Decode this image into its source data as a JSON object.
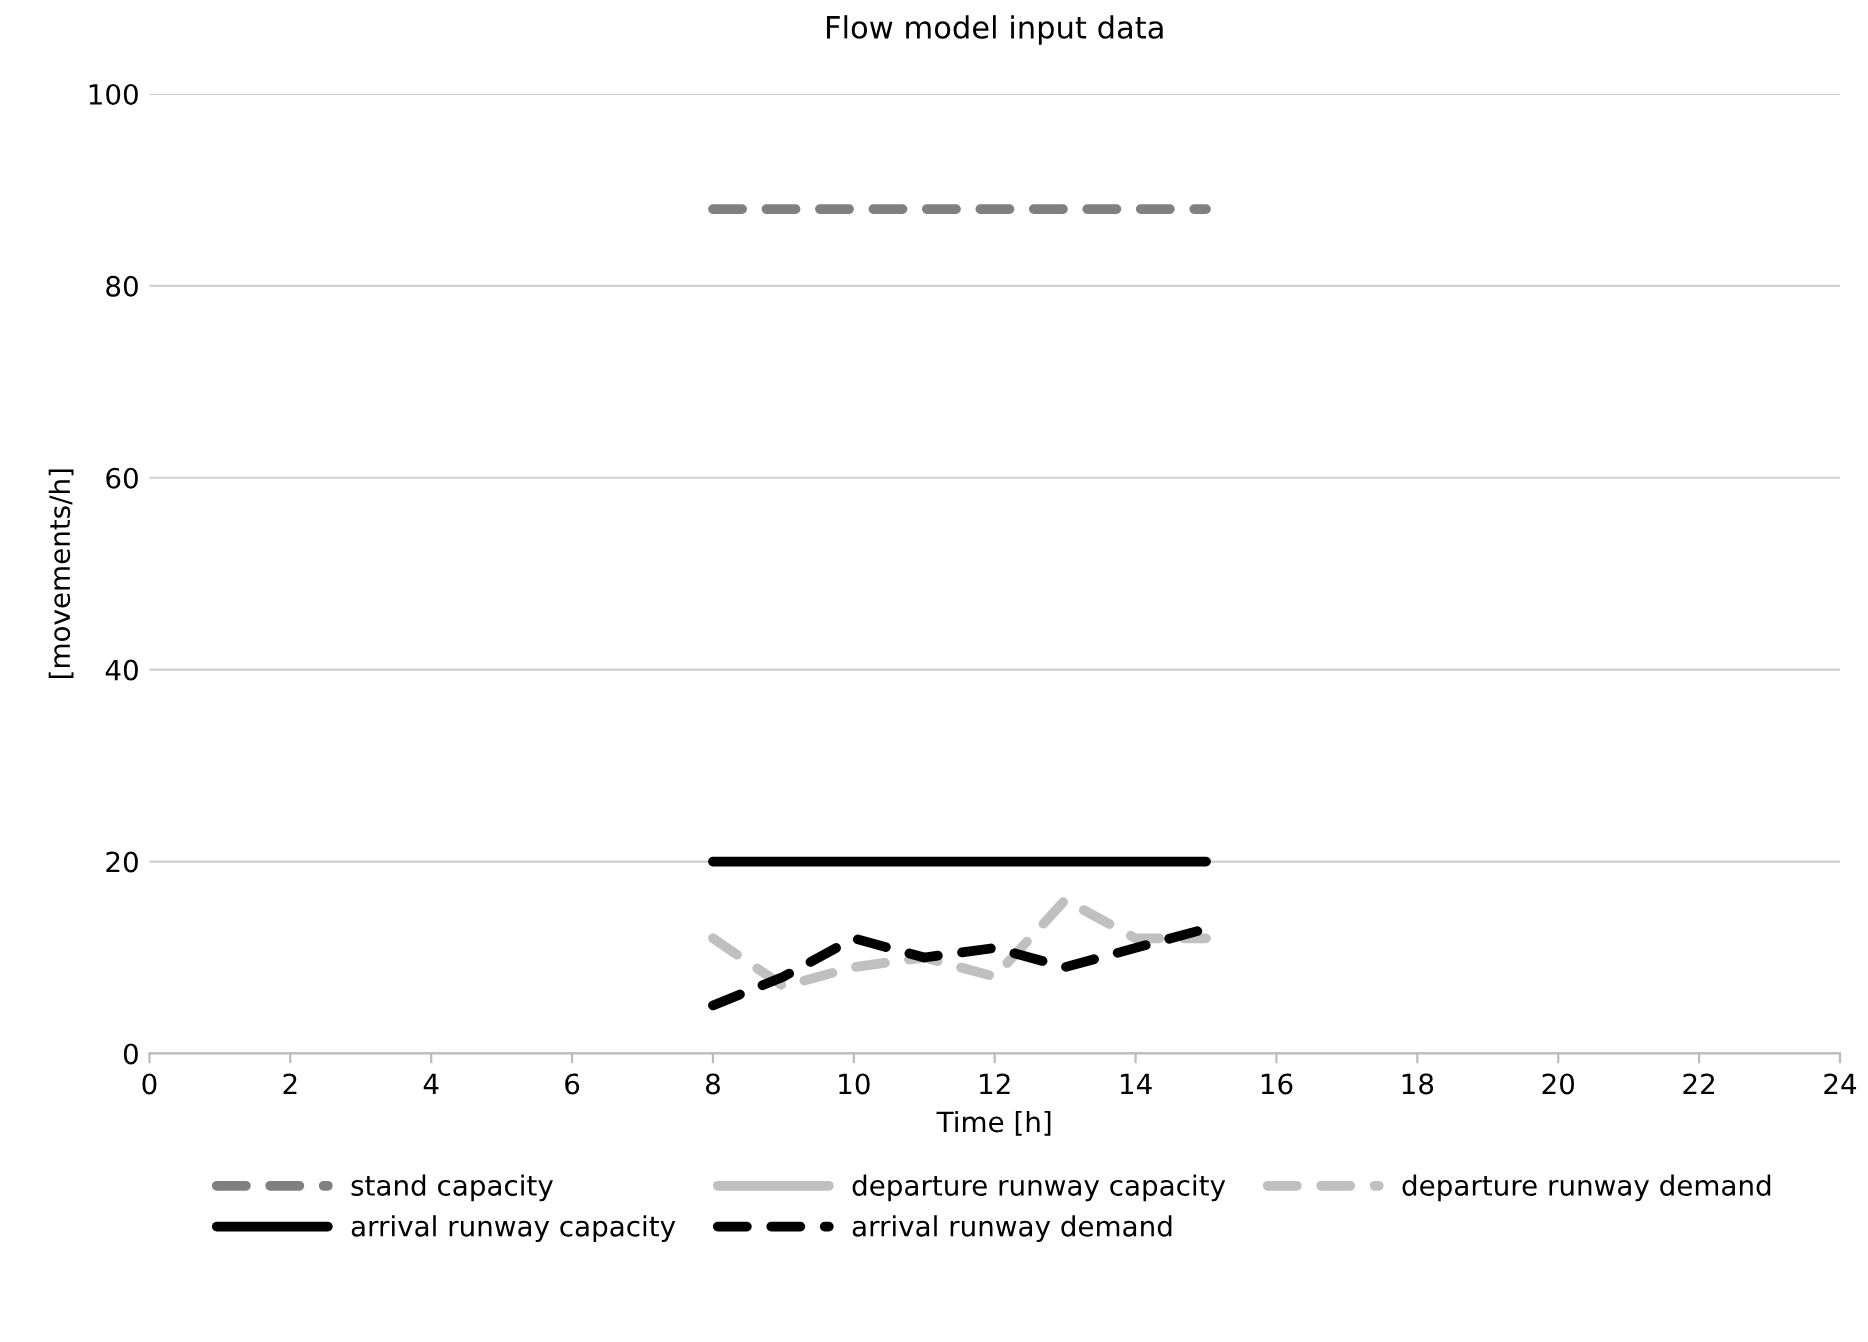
{
  "chart_data": {
    "type": "line",
    "title": "Flow model input data",
    "xlabel": "Time [h]",
    "ylabel": "[movements/h]",
    "x": [
      8,
      9,
      10,
      11,
      12,
      13,
      14,
      15
    ],
    "series": [
      {
        "name": "stand capacity",
        "color": "#808080",
        "line_style": "dashed",
        "values": [
          88,
          88,
          88,
          88,
          88,
          88,
          88,
          88
        ]
      },
      {
        "name": "departure runway capacity",
        "color": "#c0c0c0",
        "line_style": "solid",
        "values": [
          null,
          null,
          null,
          null,
          null,
          null,
          null,
          null
        ]
      },
      {
        "name": "departure runway demand",
        "color": "#c0c0c0",
        "line_style": "dashed",
        "values": [
          12,
          7,
          9,
          10,
          8,
          16,
          12,
          12
        ]
      },
      {
        "name": "arrival runway capacity",
        "color": "#000000",
        "line_style": "solid",
        "values": [
          20,
          20,
          20,
          20,
          20,
          20,
          20,
          20
        ]
      },
      {
        "name": "arrival runway demand",
        "color": "#000000",
        "line_style": "dashed",
        "values": [
          5,
          8,
          12,
          10,
          11,
          9,
          11,
          13
        ]
      }
    ],
    "xlim": [
      0,
      24
    ],
    "xticks": [
      0,
      2,
      4,
      6,
      8,
      10,
      12,
      14,
      16,
      18,
      20,
      22,
      24
    ],
    "ylim": [
      0,
      100
    ],
    "yticks": [
      0,
      20,
      40,
      60,
      80,
      100
    ],
    "grid": "y",
    "legend": "bottom",
    "marker": "none"
  }
}
